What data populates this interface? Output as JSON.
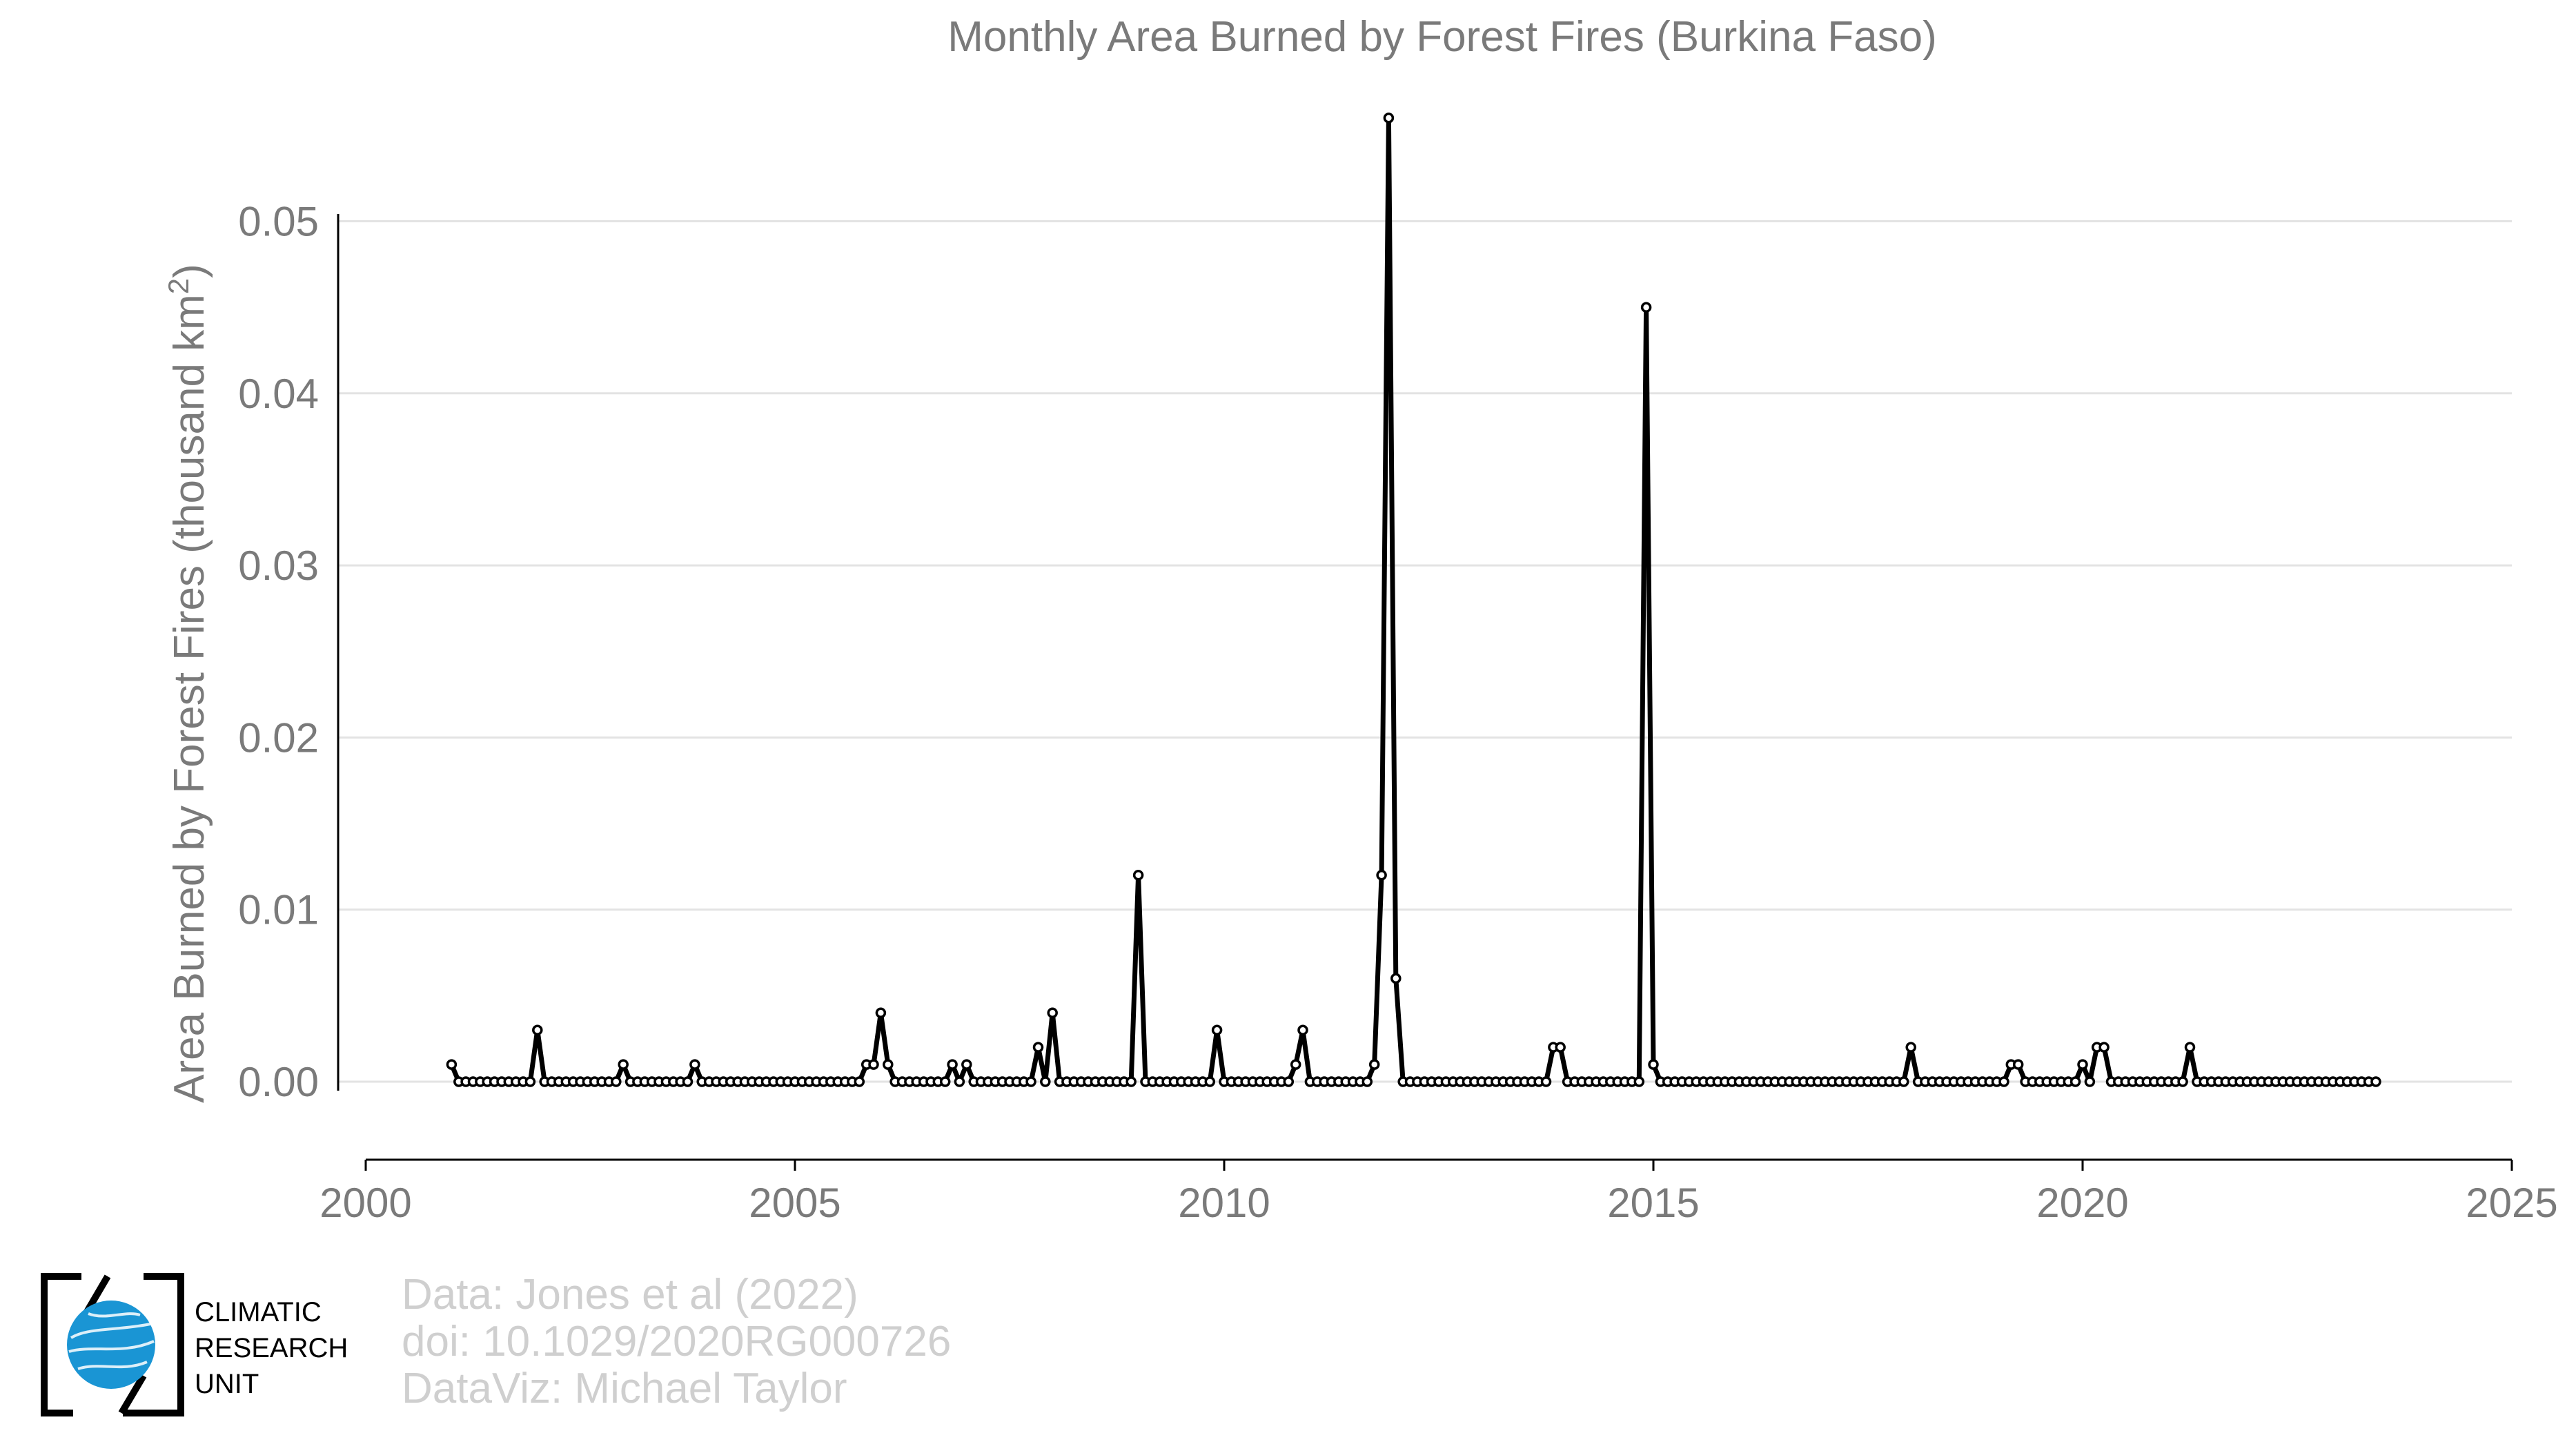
{
  "chart_data": {
    "type": "line",
    "title": "Monthly Area Burned by Forest Fires (Burkina Faso)",
    "ylabel": "Area Burned by Forest Fires (thousand km",
    "ylabel_superscript": "2",
    "ylabel_close": ")",
    "xlim": [
      2000,
      2025
    ],
    "ylim": [
      -0.0045,
      0.058
    ],
    "grid": true,
    "x_ticks": [
      2000,
      2005,
      2010,
      2015,
      2020,
      2025
    ],
    "y_ticks": [
      0,
      0.01,
      0.02,
      0.03,
      0.04,
      0.05
    ],
    "y_tick_labels": [
      "0.00",
      "0.01",
      "0.02",
      "0.03",
      "0.04",
      "0.05"
    ],
    "series": [
      {
        "start_year": 2001,
        "start_month": 1,
        "values": [
          0.001,
          0,
          0,
          0,
          0,
          0,
          0,
          0,
          0,
          0,
          0,
          0,
          0.003,
          0,
          0,
          0,
          0,
          0,
          0,
          0,
          0,
          0,
          0,
          0,
          0.001,
          0,
          0,
          0,
          0,
          0,
          0,
          0,
          0,
          0,
          0.001,
          0,
          0,
          0,
          0,
          0,
          0,
          0,
          0,
          0,
          0,
          0,
          0,
          0,
          0,
          0,
          0,
          0,
          0,
          0,
          0,
          0,
          0,
          0,
          0.001,
          0.001,
          0.004,
          0.001,
          0,
          0,
          0,
          0,
          0,
          0,
          0,
          0,
          0.001,
          0,
          0.001,
          0,
          0,
          0,
          0,
          0,
          0,
          0,
          0,
          0,
          0.002,
          0,
          0.004,
          0,
          0,
          0,
          0,
          0,
          0,
          0,
          0,
          0,
          0,
          0,
          0.012,
          0,
          0,
          0,
          0,
          0,
          0,
          0,
          0,
          0,
          0,
          0.003,
          0,
          0,
          0,
          0,
          0,
          0,
          0,
          0,
          0,
          0,
          0.001,
          0.003,
          0,
          0,
          0,
          0,
          0,
          0,
          0,
          0,
          0,
          0.001,
          0.012,
          0.056,
          0.006,
          0,
          0,
          0,
          0,
          0,
          0,
          0,
          0,
          0,
          0,
          0,
          0,
          0,
          0,
          0,
          0,
          0,
          0,
          0,
          0,
          0,
          0.002,
          0.002,
          0,
          0,
          0,
          0,
          0,
          0,
          0,
          0,
          0,
          0,
          0,
          0.045,
          0.001,
          0,
          0,
          0,
          0,
          0,
          0,
          0,
          0,
          0,
          0,
          0,
          0,
          0,
          0,
          0,
          0,
          0,
          0,
          0,
          0,
          0,
          0,
          0,
          0,
          0,
          0,
          0,
          0,
          0,
          0,
          0,
          0,
          0,
          0,
          0,
          0.002,
          0,
          0,
          0,
          0,
          0,
          0,
          0,
          0,
          0,
          0,
          0,
          0,
          0,
          0.001,
          0.001,
          0,
          0,
          0,
          0,
          0,
          0,
          0,
          0,
          0.001,
          0,
          0.002,
          0.002,
          0,
          0,
          0,
          0,
          0,
          0,
          0,
          0,
          0,
          0,
          0,
          0.002,
          0,
          0,
          0,
          0,
          0,
          0,
          0,
          0,
          0,
          0,
          0,
          0,
          0,
          0,
          0,
          0,
          0,
          0,
          0,
          0,
          0,
          0,
          0,
          0,
          0,
          0
        ]
      }
    ]
  },
  "credits": {
    "line1": "Data: Jones et al (2022)",
    "line2": "doi: 10.1029/2020RG000726",
    "line3": "DataViz: Michael Taylor"
  },
  "logo": {
    "line1": "CLIMATIC",
    "line2": "RESEARCH",
    "line3": "UNIT",
    "globe_color": "#1a95d4"
  }
}
